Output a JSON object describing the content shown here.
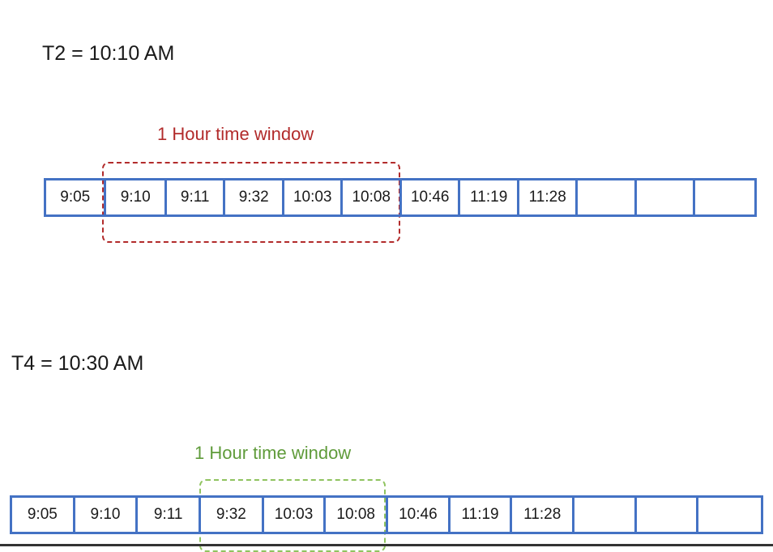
{
  "panels": [
    {
      "title": "T2 = 10:10 AM",
      "window_label": "1 Hour time window",
      "window_color": "#b22b2b",
      "cells": [
        "9:05",
        "9:10",
        "9:11",
        "9:32",
        "10:03",
        "10:08",
        "10:46",
        "11:19",
        "11:28",
        "",
        "",
        ""
      ]
    },
    {
      "title": "T4 = 10:30 AM",
      "window_label": "1 Hour time window",
      "window_color": "#7aae4a",
      "cells": [
        "9:05",
        "9:10",
        "9:11",
        "9:32",
        "10:03",
        "10:08",
        "10:46",
        "11:19",
        "11:28",
        "",
        "",
        ""
      ]
    }
  ],
  "colors": {
    "cell_border": "#4472c4"
  }
}
